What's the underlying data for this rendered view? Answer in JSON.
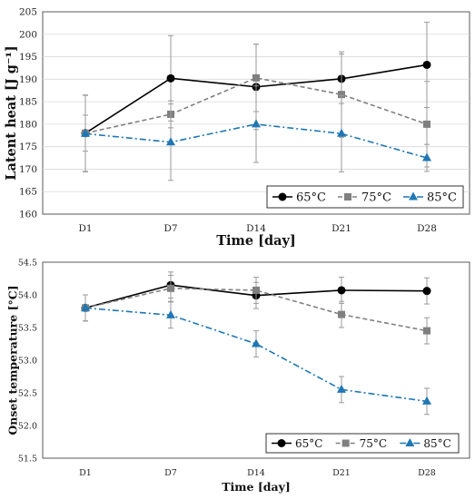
{
  "chart_data": [
    {
      "type": "line",
      "categories": [
        "D1",
        "D7",
        "D14",
        "D21",
        "D28"
      ],
      "xlabel": "Time [day]",
      "ylabel": "Latent heat [J g⁻¹]",
      "ylim": [
        160,
        205
      ],
      "yticks": [
        160,
        165,
        170,
        175,
        180,
        185,
        190,
        195,
        200,
        205
      ],
      "grid": true,
      "legend": "bottom-right",
      "series": [
        {
          "name": "65°C",
          "color": "#000000",
          "marker": "circle",
          "dash": "solid",
          "values": [
            178,
            190.2,
            188.3,
            190.1,
            193.2
          ],
          "err": [
            8.5,
            9.5,
            9.5,
            5.5,
            9.5
          ]
        },
        {
          "name": "75°C",
          "color": "#808080",
          "marker": "square",
          "dash": "dashed",
          "values": [
            178,
            182.2,
            190.3,
            186.6,
            180
          ],
          "err": [
            4,
            3,
            7.5,
            9.5,
            9.5
          ]
        },
        {
          "name": "85°C",
          "color": "#1f77b4",
          "marker": "triangle",
          "dash": "dashdot",
          "values": [
            177.9,
            176,
            180,
            177.9,
            172.5
          ],
          "err": [
            8.5,
            8.5,
            8.5,
            8.5,
            3
          ]
        }
      ]
    },
    {
      "type": "line",
      "categories": [
        "D1",
        "D7",
        "D14",
        "D21",
        "D28"
      ],
      "xlabel": "Time [day]",
      "ylabel": "Onset temperature [°C]",
      "ylim": [
        51.5,
        54.5
      ],
      "yticks": [
        51.5,
        52,
        52.5,
        53,
        53.5,
        54,
        54.5
      ],
      "grid": false,
      "legend": "bottom-right",
      "series": [
        {
          "name": "65°C",
          "color": "#000000",
          "marker": "circle",
          "dash": "solid",
          "values": [
            53.8,
            54.15,
            53.99,
            54.07,
            54.06
          ],
          "err": [
            0.2,
            0.2,
            0.2,
            0.2,
            0.2
          ]
        },
        {
          "name": "75°C",
          "color": "#808080",
          "marker": "square",
          "dash": "dashed",
          "values": [
            53.8,
            54.1,
            54.07,
            53.7,
            53.45
          ],
          "err": [
            0.2,
            0.2,
            0.2,
            0.2,
            0.2
          ]
        },
        {
          "name": "85°C",
          "color": "#1f77b4",
          "marker": "triangle",
          "dash": "dashdot",
          "values": [
            53.8,
            53.69,
            53.25,
            52.55,
            52.37
          ],
          "err": [
            0.2,
            0.2,
            0.2,
            0.2,
            0.2
          ]
        }
      ]
    }
  ]
}
